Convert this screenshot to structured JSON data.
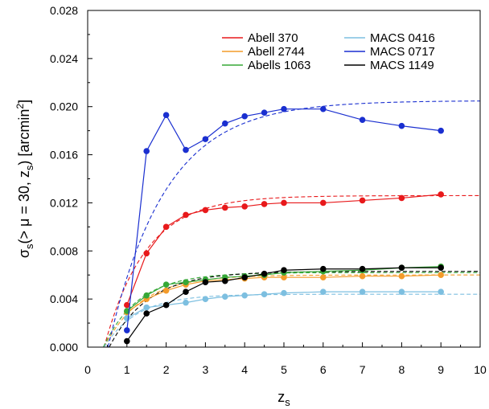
{
  "chart_data": {
    "type": "line",
    "title": "",
    "xlabel": {
      "main": "z",
      "sub": "s"
    },
    "ylabel": {
      "sigma": "σ",
      "sigma_sub": "s",
      "body": "(> μ = 30, z",
      "body_sub": "s",
      "tail": ") [arcmin",
      "tail_sup": "2",
      "close": "]"
    },
    "xlim": [
      0,
      10
    ],
    "ylim": [
      0,
      0.028
    ],
    "xticks": [
      0,
      1,
      2,
      3,
      4,
      5,
      6,
      7,
      8,
      9,
      10
    ],
    "xtick_labels": [
      "0",
      "1",
      "2",
      "3",
      "4",
      "5",
      "6",
      "7",
      "8",
      "9",
      "10"
    ],
    "yticks": [
      0,
      0.004,
      0.008,
      0.012,
      0.016,
      0.02,
      0.024,
      0.028
    ],
    "ytick_labels": [
      "0.000",
      "0.004",
      "0.008",
      "0.012",
      "0.016",
      "0.020",
      "0.024",
      "0.028"
    ],
    "grid": false,
    "legend_position": "top-right",
    "x": [
      1,
      1.5,
      2,
      2.5,
      3,
      3.5,
      4,
      4.5,
      5,
      6,
      7,
      8,
      9
    ],
    "fit_style": "dashed",
    "series": [
      {
        "name": "Abell 370",
        "color": "#e8191b",
        "values": [
          0.0035,
          0.0078,
          0.01,
          0.011,
          0.0114,
          0.0116,
          0.0117,
          0.0119,
          0.012,
          0.012,
          0.0122,
          0.0124,
          0.0127
        ],
        "fit": {
          "z0": 0.42,
          "a": 0.0126,
          "t": 1.05
        }
      },
      {
        "name": "Abell 2744",
        "color": "#f39b2a",
        "values": [
          0.0029,
          0.004,
          0.0047,
          0.0052,
          0.0055,
          0.0056,
          0.0057,
          0.0058,
          0.0058,
          0.0058,
          0.0059,
          0.0059,
          0.006
        ],
        "fit": {
          "z0": 0.42,
          "a": 0.006,
          "t": 0.95
        }
      },
      {
        "name": "Abells 1063",
        "color": "#36a837",
        "values": [
          0.003,
          0.0043,
          0.0052,
          0.0054,
          0.0056,
          0.0058,
          0.0059,
          0.006,
          0.0062,
          0.0063,
          0.0064,
          0.0066,
          0.0067
        ],
        "fit": {
          "z0": 0.4,
          "a": 0.0062,
          "t": 0.9
        }
      },
      {
        "name": "MACS 0416",
        "color": "#7dbfe0",
        "values": [
          0.0024,
          0.0033,
          0.0035,
          0.0037,
          0.004,
          0.0042,
          0.0043,
          0.0044,
          0.0045,
          0.0046,
          0.0046,
          0.0046,
          0.0046
        ],
        "fit": {
          "z0": 0.42,
          "a": 0.0044,
          "t": 0.85
        }
      },
      {
        "name": "MACS 0717",
        "color": "#1a2fd0",
        "values": [
          0.0014,
          0.0163,
          0.0193,
          0.0164,
          0.0173,
          0.0186,
          0.0192,
          0.0195,
          0.0198,
          0.0198,
          0.0189,
          0.0184,
          0.018
        ],
        "fit": {
          "z0": 0.52,
          "a": 0.0205,
          "t": 1.45
        }
      },
      {
        "name": "MACS 1149",
        "color": "#000000",
        "values": [
          0.0005,
          0.0028,
          0.0035,
          0.0046,
          0.0054,
          0.0055,
          0.0058,
          0.0061,
          0.0064,
          0.0065,
          0.0065,
          0.0066,
          0.0066
        ],
        "fit": {
          "z0": 0.55,
          "a": 0.0063,
          "t": 1.0
        }
      }
    ]
  }
}
